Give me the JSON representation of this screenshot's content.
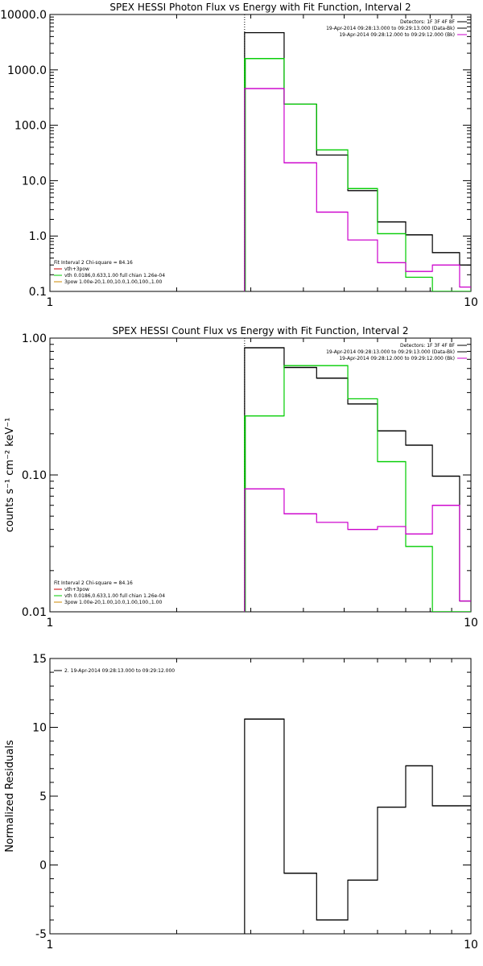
{
  "chart_data": [
    {
      "type": "line",
      "title": "SPEX HESSI Photon Flux vs Energy with Fit Function, Interval 2",
      "xlabel": "",
      "ylabel": "",
      "xscale": "log",
      "yscale": "log",
      "xlim": [
        1,
        10
      ],
      "ylim": [
        0.1,
        10000
      ],
      "xticks": [
        "1",
        "10"
      ],
      "yticks": [
        "0.1",
        "1.0",
        "10.0",
        "100.0",
        "1000.0",
        "10000.0"
      ],
      "edges": [
        2.9,
        3.6,
        4.3,
        5.1,
        6.0,
        7.0,
        8.1,
        9.4,
        10
      ],
      "threshold_line": {
        "x": 2.9,
        "color": "#00aa00"
      },
      "header_right": [
        "Detectors: 1F 3F 4F 8F",
        "19-Apr-2014 09:28:13.000 to 09:29:13.000 (Data-Bk)",
        "19-Apr-2014 09:28:12.000 to 09:29:12.000 (Bk)"
      ],
      "header_right_colors": [
        "#000000",
        "#000000",
        "#cc00cc"
      ],
      "legend_lines": [
        "Fit Interval 2   Chi-square = 84.16",
        "vth+3pow",
        "vth 0.0186,0.633,1.00  full chian 1.26e-04",
        "3pow 1.00e-20,1.00,10.0,1.00,100.,1.00"
      ],
      "legend_colors": [
        "#000000",
        "#cc0000",
        "#00cc00",
        "#cc8800"
      ],
      "series": [
        {
          "color": "#000000",
          "values": [
            4700,
            240,
            29,
            6.6,
            1.8,
            1.05,
            0.5,
            0.3
          ]
        },
        {
          "color": "#00cc00",
          "values": [
            1600,
            240,
            36,
            7.2,
            1.1,
            0.18,
            0.1,
            0.1
          ]
        },
        {
          "color": "#cc00cc",
          "values": [
            460,
            21,
            2.7,
            0.85,
            0.33,
            0.23,
            0.3,
            0.12
          ]
        }
      ]
    },
    {
      "type": "line",
      "title": "SPEX HESSI Count Flux vs Energy with Fit Function, Interval 2",
      "xlabel": "",
      "ylabel": "counts s⁻¹ cm⁻² keV⁻¹",
      "xscale": "log",
      "yscale": "log",
      "xlim": [
        1,
        10
      ],
      "ylim": [
        0.01,
        1.0
      ],
      "xticks": [
        "1",
        "10"
      ],
      "yticks": [
        "0.01",
        "0.10",
        "1.00"
      ],
      "edges": [
        2.9,
        3.6,
        4.3,
        5.1,
        6.0,
        7.0,
        8.1,
        9.4,
        10
      ],
      "threshold_line": {
        "x": 2.9,
        "color": "#00aa00"
      },
      "header_right": [
        "Detectors: 1F 3F 4F 8F",
        "19-Apr-2014 09:28:13.000 to 09:29:13.000 (Data-Bk)",
        "19-Apr-2014 09:28:12.000 to 09:29:12.000 (Bk)"
      ],
      "header_right_colors": [
        "#000000",
        "#000000",
        "#cc00cc"
      ],
      "legend_lines": [
        "Fit Interval 2   Chi-square = 84.16",
        "vth+3pow",
        "vth 0.0186,0.633,1.00  full chian 1.26e-04",
        "3pow 1.00e-20,1.00,10.0,1.00,100.,1.00"
      ],
      "legend_colors": [
        "#000000",
        "#cc0000",
        "#00cc00",
        "#cc8800"
      ],
      "series": [
        {
          "color": "#000000",
          "values": [
            0.85,
            0.61,
            0.51,
            0.33,
            0.21,
            0.165,
            0.098,
            0.012
          ]
        },
        {
          "color": "#00cc00",
          "values": [
            0.27,
            0.63,
            0.63,
            0.36,
            0.125,
            0.03,
            0.01,
            0.01
          ]
        },
        {
          "color": "#cc00cc",
          "values": [
            0.079,
            0.052,
            0.045,
            0.04,
            0.042,
            0.037,
            0.06,
            0.012
          ]
        }
      ]
    },
    {
      "type": "line",
      "title": "",
      "xlabel": "",
      "ylabel": "Normalized Residuals",
      "xscale": "log",
      "yscale": "linear",
      "xlim": [
        1,
        10
      ],
      "ylim": [
        -5,
        15
      ],
      "xticks": [
        "1",
        "10"
      ],
      "yticks": [
        "-5",
        "0",
        "5",
        "10",
        "15"
      ],
      "edges": [
        2.9,
        3.6,
        4.3,
        5.1,
        6.0,
        7.0,
        8.1,
        9.4,
        10
      ],
      "legend_lines": [
        "2. 19-Apr-2014 09:28:13.000 to 09:29:12.000"
      ],
      "legend_colors": [
        "#000000"
      ],
      "series": [
        {
          "color": "#000000",
          "values": [
            10.6,
            -0.6,
            -4.0,
            -1.1,
            4.2,
            7.2,
            4.3,
            4.3
          ]
        }
      ]
    }
  ]
}
